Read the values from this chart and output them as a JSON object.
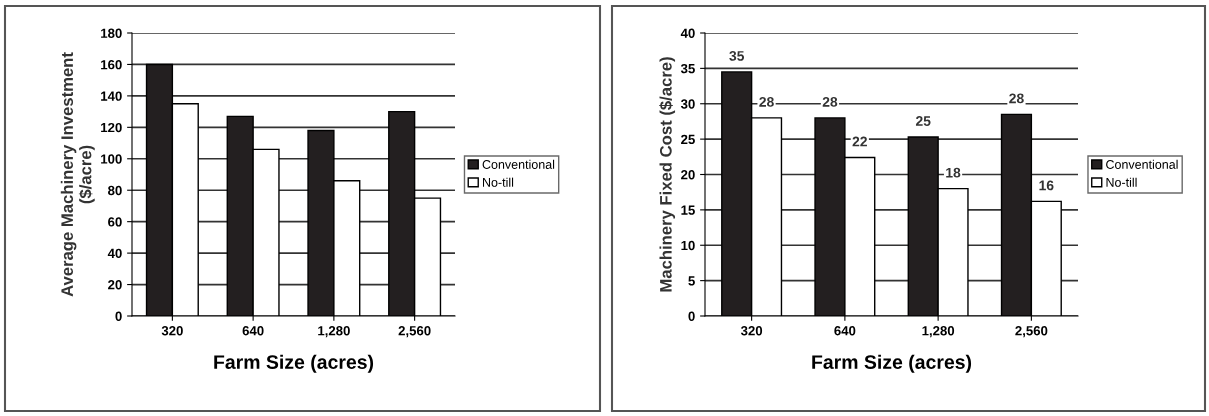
{
  "chart_data": [
    {
      "type": "bar",
      "categories": [
        "320",
        "640",
        "1,280",
        "2,560"
      ],
      "xlabel": "Farm Size (acres)",
      "ylabel": "Average Machinery Investment\n($/acre)",
      "ylim": [
        0,
        180
      ],
      "yticks": [
        0,
        20,
        40,
        60,
        80,
        100,
        120,
        140,
        160,
        180
      ],
      "grid": "y",
      "legend": "right",
      "series": [
        {
          "name": "Conventional",
          "color": "#231f20",
          "values": [
            160,
            127,
            118,
            130
          ]
        },
        {
          "name": "No-till",
          "color": "#ffffff",
          "values": [
            135,
            106,
            86,
            75
          ]
        }
      ]
    },
    {
      "type": "bar",
      "categories": [
        "320",
        "640",
        "1,280",
        "2,560"
      ],
      "xlabel": "Farm Size (acres)",
      "ylabel": "Machinery Fixed Cost ($/acre)",
      "ylim": [
        0,
        40
      ],
      "yticks": [
        0,
        5,
        10,
        15,
        20,
        25,
        30,
        35,
        40
      ],
      "grid": "y",
      "legend": "right",
      "series": [
        {
          "name": "Conventional",
          "color": "#231f20",
          "values": [
            34.5,
            28,
            25.3,
            28.5
          ],
          "value_labels": [
            "35",
            "28",
            "25",
            "28"
          ]
        },
        {
          "name": "No-till",
          "color": "#ffffff",
          "values": [
            28,
            22.4,
            18,
            16.2
          ],
          "value_labels": [
            "28",
            "22",
            "18",
            "16"
          ]
        }
      ]
    }
  ]
}
